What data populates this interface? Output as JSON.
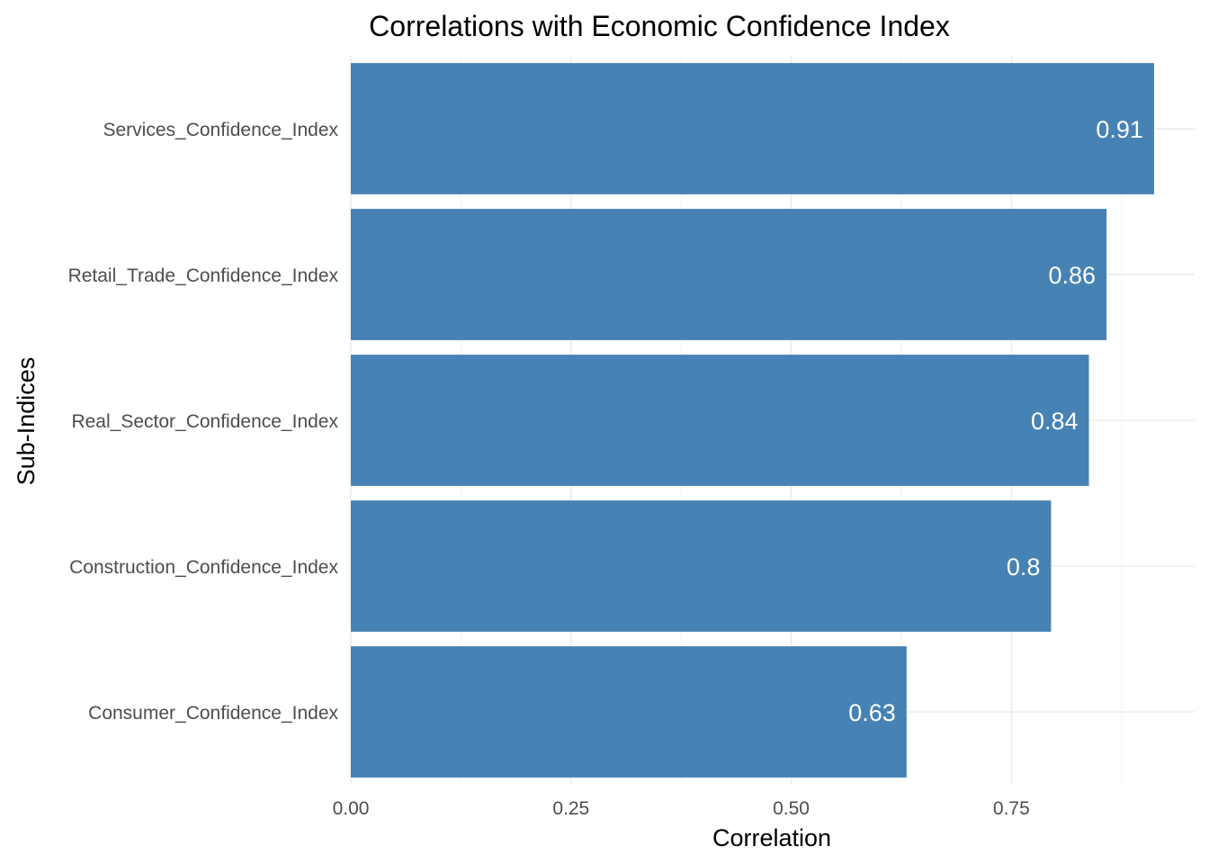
{
  "chart_data": {
    "type": "bar",
    "orientation": "horizontal",
    "title": "Correlations with Economic Confidence Index",
    "xlabel": "Correlation",
    "ylabel": "Sub-Indices",
    "categories": [
      "Services_Confidence_Index",
      "Retail_Trade_Confidence_Index",
      "Real_Sector_Confidence_Index",
      "Construction_Confidence_Index",
      "Consumer_Confidence_Index"
    ],
    "values": [
      0.912,
      0.858,
      0.838,
      0.795,
      0.631
    ],
    "data_labels": [
      "0.91",
      "0.86",
      "0.84",
      "0.8",
      "0.63"
    ],
    "xlim": [
      0,
      0.958
    ],
    "x_ticks": [
      0,
      0.25,
      0.5,
      0.75
    ],
    "x_tick_labels": [
      "0.00",
      "0.25",
      "0.50",
      "0.75"
    ],
    "grid": true,
    "bar_color": "#4682b4",
    "gridline_color": "#ebebeb",
    "minor_gridline_color": "#f4f4f4"
  }
}
